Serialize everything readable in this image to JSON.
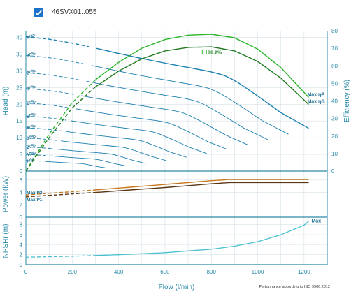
{
  "header": {
    "checkbox_label": "46SVX01..055",
    "checked": true
  },
  "colors": {
    "axis": "#2a8aa8",
    "grid": "#d6e2e8",
    "head_curves": "#1b7fb0",
    "head_dashed": "#1b7fb0",
    "eff_max": "#2bb52b",
    "eff_dark": "#1f7a1f",
    "eff_dashed": "#2bb52b",
    "power_p1": "#c9771b",
    "power_p2": "#5a3512",
    "npsh": "#47c1cf"
  },
  "chart_data": [
    {
      "type": "line",
      "panel": "head-efficiency",
      "ylabel_left": "Head (m)",
      "ylabel_right": "Efficiency (%)",
      "xlim": [
        0,
        1300
      ],
      "ylim_left": [
        0,
        42
      ],
      "ylim_right": [
        0,
        80
      ],
      "yticks_left": [
        "0",
        "5",
        "10",
        "15",
        "20",
        "25",
        "30",
        "35",
        "40"
      ],
      "yticks_right": [
        "0",
        "10",
        "20",
        "30",
        "40",
        "50",
        "60",
        "70",
        "80"
      ],
      "speed_labels": [
        "Max",
        "90%",
        "80%",
        "70%",
        "60%",
        "50%",
        "40%",
        "30%",
        "20%",
        "10%",
        "Min"
      ],
      "speed_fractions": [
        1.0,
        0.9,
        0.8,
        0.7,
        0.6,
        0.5,
        0.4,
        0.3,
        0.2,
        0.1,
        0.0
      ],
      "head_max_curve": {
        "x": [
          0,
          100,
          200,
          300,
          400,
          500,
          600,
          700,
          800,
          850,
          900,
          1000,
          1100,
          1220
        ],
        "y": [
          40.2,
          39.5,
          38.3,
          36.8,
          35.2,
          33.7,
          32.3,
          31.0,
          29.7,
          28.8,
          27.2,
          22.5,
          17.5,
          12.8
        ]
      },
      "efficiency_curves": [
        {
          "name": "Max ηP",
          "x": [
            0,
            100,
            200,
            300,
            400,
            500,
            600,
            700,
            800,
            900,
            1000,
            1100,
            1220
          ],
          "y": [
            0,
            21,
            39,
            52,
            62,
            70,
            75,
            77.5,
            78,
            76,
            69.5,
            59,
            42
          ]
        },
        {
          "name": "Max ηG",
          "x": [
            0,
            100,
            200,
            300,
            400,
            500,
            600,
            700,
            800,
            900,
            1000,
            1100,
            1220
          ],
          "y": [
            0,
            19,
            36,
            48,
            57,
            64,
            68.5,
            70.5,
            70.8,
            68.5,
            62.5,
            53,
            38
          ]
        }
      ],
      "annotation": {
        "text": "76.2%",
        "x": 770,
        "y_eff": 76.2
      },
      "dashed_until_x": 300
    },
    {
      "type": "line",
      "panel": "power",
      "ylabel": "Power (kW)",
      "xlim": [
        0,
        1300
      ],
      "ylim": [
        0,
        7
      ],
      "yticks": [
        "0",
        "2",
        "4",
        "6"
      ],
      "series": [
        {
          "name": "Max P2",
          "x": [
            0,
            300,
            600,
            800,
            880,
            1000,
            1220
          ],
          "y": [
            3.6,
            4.4,
            5.3,
            5.9,
            6.1,
            6.1,
            6.1
          ]
        },
        {
          "name": "Max P1",
          "x": [
            0,
            300,
            600,
            800,
            880,
            1000,
            1220
          ],
          "y": [
            3.3,
            4.0,
            4.8,
            5.4,
            5.6,
            5.6,
            5.6
          ]
        }
      ],
      "labels": [
        "Max P2",
        "Max P1"
      ],
      "dashed_until_x": 300
    },
    {
      "type": "line",
      "panel": "npsh",
      "ylabel": "NPSHr (m)",
      "xlabel": "Flow (l/min)",
      "xlim": [
        0,
        1300
      ],
      "ylim": [
        0,
        9.5
      ],
      "yticks": [
        "0",
        "2",
        "4",
        "6",
        "8"
      ],
      "xticks": [
        "0",
        "200",
        "400",
        "600",
        "800",
        "1000",
        "1200"
      ],
      "series": [
        {
          "name": "Max",
          "x": [
            0,
            200,
            400,
            600,
            800,
            900,
            1000,
            1100,
            1200,
            1220
          ],
          "y": [
            1.5,
            1.7,
            2.0,
            2.4,
            3.1,
            3.7,
            4.6,
            6.0,
            7.9,
            8.7
          ]
        }
      ],
      "label": "Max",
      "dashed_until_x": 300
    }
  ],
  "footer": {
    "note": "Performance according to ISO 9906:2012"
  }
}
